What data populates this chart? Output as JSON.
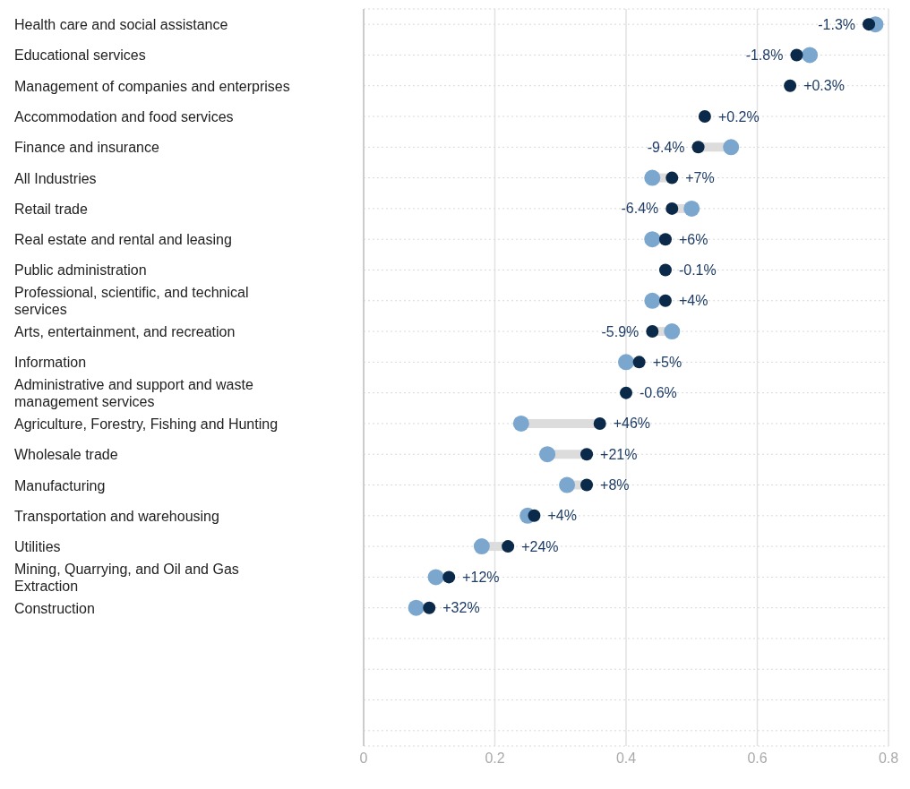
{
  "chart_data": {
    "type": "scatter",
    "orientation": "horizontal",
    "categories": [
      "Health care and social assistance",
      "Educational services",
      "Management of companies and enterprises",
      "Accommodation and food services",
      "Finance and insurance",
      "All Industries",
      "Retail trade",
      "Real estate and rental and leasing",
      "Public administration",
      "Professional, scientific, and technical services",
      "Arts, entertainment, and recreation",
      "Information",
      "Administrative and support and waste management services",
      "Agriculture, Forestry, Fishing and Hunting",
      "Wholesale trade",
      "Manufacturing",
      "Transportation and warehousing",
      "Utilities",
      "Mining, Quarrying, and Oil and Gas Extraction",
      "Construction",
      null,
      null,
      null,
      null
    ],
    "series": [
      {
        "color": "#7ba7cf",
        "values": [
          0.78,
          0.68,
          null,
          null,
          0.56,
          0.44,
          0.5,
          0.44,
          null,
          0.44,
          0.47,
          0.4,
          null,
          0.24,
          0.28,
          0.31,
          0.25,
          0.18,
          0.11,
          0.08,
          null,
          null,
          null,
          null
        ]
      },
      {
        "color": "#0b2a4a",
        "values": [
          0.77,
          0.66,
          0.65,
          0.52,
          0.51,
          0.47,
          0.47,
          0.46,
          0.46,
          0.46,
          0.44,
          0.42,
          0.4,
          0.36,
          0.34,
          0.34,
          0.26,
          0.22,
          0.13,
          0.1,
          null,
          null,
          null,
          null
        ]
      }
    ],
    "annotations": [
      {
        "text": "-1.3%",
        "x": 0.77,
        "y": "Health care and social assistance"
      },
      {
        "text": "-1.8%",
        "x": 0.66,
        "y": "Educational services"
      },
      {
        "text": "+0.3%",
        "x": 0.65,
        "y": "Management of companies and enterprises"
      },
      {
        "text": "+0.2%",
        "x": 0.52,
        "y": "Accommodation and food services"
      },
      {
        "text": "-9.4%",
        "x": 0.51,
        "y": "Finance and insurance"
      },
      {
        "text": "+7%",
        "x": 0.47,
        "y": "All Industries"
      },
      {
        "text": "-6.4%",
        "x": 0.47,
        "y": "Retail trade"
      },
      {
        "text": "+6%",
        "x": 0.46,
        "y": "Real estate and rental and leasing"
      },
      {
        "text": "-0.1%",
        "x": 0.46,
        "y": "Public administration"
      },
      {
        "text": "+4%",
        "x": 0.46,
        "y": "Professional, scientific, and technical services"
      },
      {
        "text": "-5.9%",
        "x": 0.44,
        "y": "Arts, entertainment, and recreation"
      },
      {
        "text": "+5%",
        "x": 0.42,
        "y": "Information"
      },
      {
        "text": "-0.6%",
        "x": 0.4,
        "y": "Administrative and support and waste management services"
      },
      {
        "text": "+46%",
        "x": 0.36,
        "y": "Agriculture, Forestry, Fishing and Hunting"
      },
      {
        "text": "+21%",
        "x": 0.34,
        "y": "Wholesale trade"
      },
      {
        "text": "+8%",
        "x": 0.34,
        "y": "Manufacturing"
      },
      {
        "text": "+4%",
        "x": 0.26,
        "y": "Transportation and warehousing"
      },
      {
        "text": "+24%",
        "x": 0.22,
        "y": "Utilities"
      },
      {
        "text": "+12%",
        "x": 0.13,
        "y": "Mining, Quarrying, and Oil and Gas Extraction"
      },
      {
        "text": "+32%",
        "x": 0.1,
        "y": "Construction"
      }
    ],
    "xlim": [
      0,
      0.8
    ],
    "xticks": [
      0,
      0.2,
      0.4,
      0.6,
      0.8
    ],
    "grid": true,
    "marker": "circle"
  }
}
